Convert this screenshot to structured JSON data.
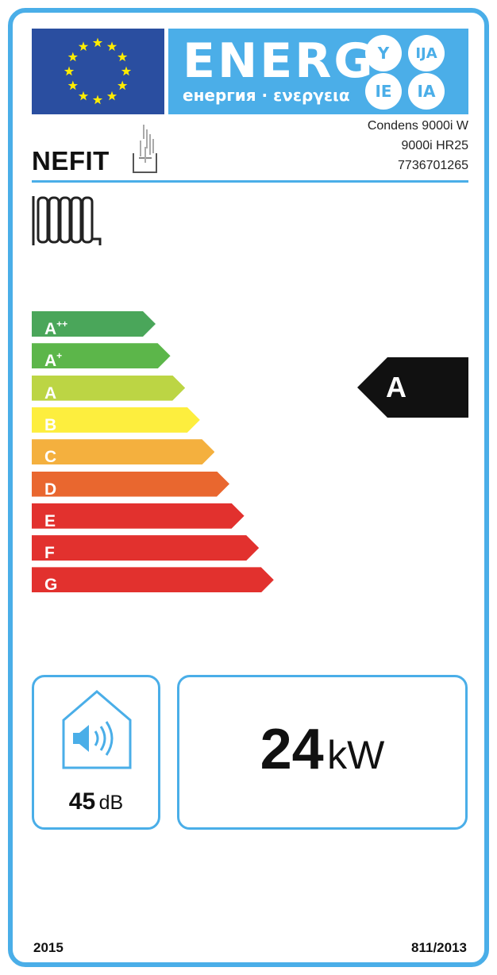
{
  "header": {
    "energy_title": "ENERG",
    "energy_subtitle": "енергия · ενεργεια",
    "language_suffixes": [
      "Y",
      "IJA",
      "IE",
      "IA"
    ]
  },
  "supplier": {
    "brand": "NEFIT"
  },
  "product": {
    "model_line1": "Condens 9000i W",
    "model_line2": "9000i HR25",
    "article_number": "7736701265"
  },
  "function_icon": "radiator-icon",
  "scale": {
    "classes": [
      {
        "label": "A",
        "sup": "++",
        "color": "#4aa65a"
      },
      {
        "label": "A",
        "sup": "+",
        "color": "#5cb64a"
      },
      {
        "label": "A",
        "sup": "",
        "color": "#bcd544"
      },
      {
        "label": "B",
        "sup": "",
        "color": "#fdee3e"
      },
      {
        "label": "C",
        "sup": "",
        "color": "#f4b03e"
      },
      {
        "label": "D",
        "sup": "",
        "color": "#e9672f"
      },
      {
        "label": "E",
        "sup": "",
        "color": "#e2312e"
      },
      {
        "label": "F",
        "sup": "",
        "color": "#e2312e"
      },
      {
        "label": "G",
        "sup": "",
        "color": "#e2312e"
      }
    ],
    "rating": "A"
  },
  "noise": {
    "value": "45",
    "unit": "dB"
  },
  "power": {
    "value": "24",
    "unit": "kW"
  },
  "footer": {
    "year": "2015",
    "regulation": "811/2013"
  },
  "colors": {
    "frame": "#4aaee8",
    "eu_blue": "#2a4ea0",
    "energy_blue": "#4baee8"
  }
}
